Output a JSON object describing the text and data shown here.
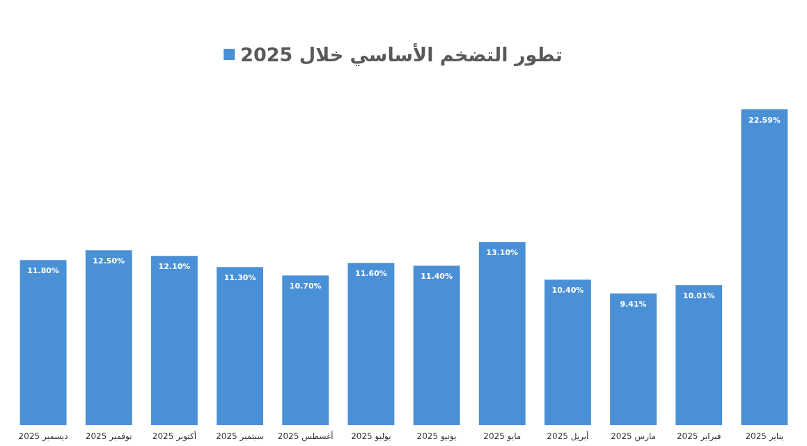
{
  "chart_data": {
    "type": "bar",
    "categories": [
      "ديسمبر 2025",
      "نوفمبر 2025",
      "أكتوبر 2025",
      "سبتمبر 2025",
      "أغسطس 2025",
      "يوليو 2025",
      "يونيو 2025",
      "مايو 2025",
      "أبريل 2025",
      "مارس 2025",
      "فبراير 2025",
      "يناير 2025"
    ],
    "series": [
      {
        "name": "تطور التضخم الأساسي خلال 2025",
        "color": "#4a90d6",
        "values": [
          11.8,
          12.5,
          12.1,
          11.3,
          10.7,
          11.6,
          11.4,
          13.1,
          10.4,
          9.41,
          10.01,
          22.59
        ],
        "value_labels": [
          "11.80%",
          "12.50%",
          "12.10%",
          "11.30%",
          "10.70%",
          "11.60%",
          "11.40%",
          "13.10%",
          "10.40%",
          "9.41%",
          "10.01%",
          "22.59%"
        ]
      }
    ],
    "legend": "top"
  }
}
